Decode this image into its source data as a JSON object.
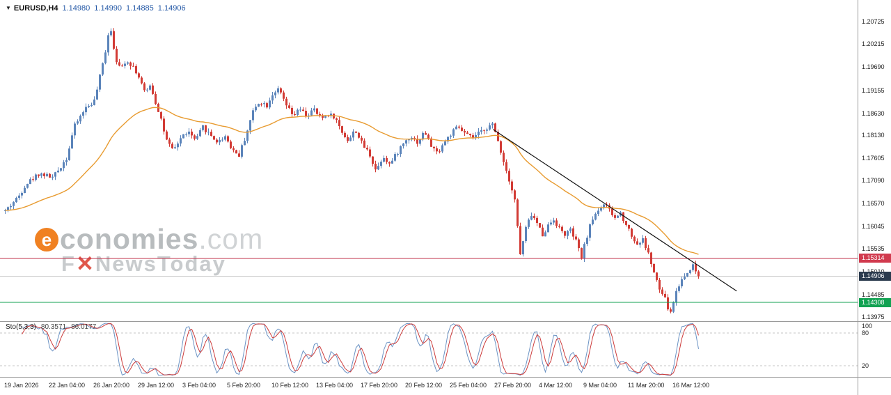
{
  "icons": {
    "symbol_marker": "▼"
  },
  "titlebar": {
    "symbol": "EURUSD,H4",
    "open": "1.14980",
    "high": "1.14990",
    "low": "1.14885",
    "close": "1.14906"
  },
  "watermark": {
    "logo_letter": "e",
    "brand": "conomies",
    "suffix": ".com",
    "tagline_part1": "F",
    "tagline_part2": "✕",
    "tagline_part3": "NewsToday"
  },
  "colors": {
    "bull": "#5b84ba",
    "bear": "#d23b35",
    "trendline": "#111111",
    "axis_border": "#9a9a9a"
  },
  "chart_data": {
    "type": "candlestick",
    "symbol": "EURUSD",
    "timeframe": "H4",
    "quote": {
      "open": 1.1498,
      "high": 1.1499,
      "low": 1.14885,
      "close": 1.14906
    },
    "price_axis_labels": [
      "1.20725",
      "1.20215",
      "1.19690",
      "1.19155",
      "1.18630",
      "1.18130",
      "1.17605",
      "1.17090",
      "1.16570",
      "1.16045",
      "1.15535",
      "1.15010",
      "1.14485",
      "1.13975"
    ],
    "time_axis_labels": [
      "19 Jan 2026",
      "22 Jan 04:00",
      "26 Jan 20:00",
      "29 Jan 12:00",
      "3 Feb 04:00",
      "5 Feb 20:00",
      "10 Feb 12:00",
      "13 Feb 04:00",
      "17 Feb 20:00",
      "20 Feb 12:00",
      "25 Feb 04:00",
      "27 Feb 20:00",
      "4 Mar 12:00",
      "9 Mar 04:00",
      "11 Mar 20:00",
      "16 Mar 12:00"
    ],
    "axis_range": {
      "top_price": 1.21218,
      "bottom_price": 1.1388
    },
    "levels": [
      {
        "price": 1.15314,
        "label": "1.15314",
        "line_color": "#c0304a",
        "badge_color": "#d13a4e"
      },
      {
        "price": 1.14308,
        "label": "1.14308",
        "line_color": "#11a252",
        "badge_color": "#11a252"
      }
    ],
    "current_price": {
      "price": 1.14906,
      "label": "1.14906",
      "line_color": "#c9c9c9",
      "badge_color": "#2b3b4e"
    },
    "trendline": {
      "from": {
        "fx": 0.575,
        "price": 1.1826
      },
      "to": {
        "fx": 0.859,
        "price": 1.1457
      }
    },
    "moving_average": {
      "period": 45,
      "color": "#e89b30"
    },
    "candle_count": 250,
    "price_path": [
      [
        0.0,
        1.164
      ],
      [
        0.019,
        1.1672
      ],
      [
        0.029,
        1.17
      ],
      [
        0.049,
        1.1726
      ],
      [
        0.069,
        1.1716
      ],
      [
        0.089,
        1.1762
      ],
      [
        0.099,
        1.183
      ],
      [
        0.114,
        1.1872
      ],
      [
        0.129,
        1.1892
      ],
      [
        0.144,
        1.2
      ],
      [
        0.151,
        1.2068
      ],
      [
        0.159,
        1.1992
      ],
      [
        0.166,
        1.1962
      ],
      [
        0.174,
        1.1985
      ],
      [
        0.184,
        1.1972
      ],
      [
        0.194,
        1.1942
      ],
      [
        0.202,
        1.1906
      ],
      [
        0.209,
        1.193
      ],
      [
        0.216,
        1.1892
      ],
      [
        0.224,
        1.1856
      ],
      [
        0.232,
        1.1802
      ],
      [
        0.242,
        1.1776
      ],
      [
        0.253,
        1.1806
      ],
      [
        0.263,
        1.1822
      ],
      [
        0.275,
        1.18
      ],
      [
        0.285,
        1.1832
      ],
      [
        0.295,
        1.1815
      ],
      [
        0.307,
        1.1796
      ],
      [
        0.317,
        1.1812
      ],
      [
        0.327,
        1.1782
      ],
      [
        0.337,
        1.1766
      ],
      [
        0.347,
        1.1812
      ],
      [
        0.357,
        1.1866
      ],
      [
        0.367,
        1.1892
      ],
      [
        0.377,
        1.188
      ],
      [
        0.387,
        1.1912
      ],
      [
        0.395,
        1.1916
      ],
      [
        0.405,
        1.1882
      ],
      [
        0.415,
        1.1856
      ],
      [
        0.425,
        1.1872
      ],
      [
        0.435,
        1.1856
      ],
      [
        0.445,
        1.1872
      ],
      [
        0.455,
        1.185
      ],
      [
        0.465,
        1.1862
      ],
      [
        0.475,
        1.1855
      ],
      [
        0.485,
        1.1822
      ],
      [
        0.495,
        1.18
      ],
      [
        0.505,
        1.1826
      ],
      [
        0.515,
        1.1792
      ],
      [
        0.525,
        1.1772
      ],
      [
        0.535,
        1.1732
      ],
      [
        0.545,
        1.1766
      ],
      [
        0.555,
        1.1746
      ],
      [
        0.565,
        1.1772
      ],
      [
        0.575,
        1.1796
      ],
      [
        0.585,
        1.1812
      ],
      [
        0.595,
        1.1796
      ],
      [
        0.605,
        1.1822
      ],
      [
        0.613,
        1.1792
      ],
      [
        0.623,
        1.1772
      ],
      [
        0.633,
        1.1796
      ],
      [
        0.643,
        1.1816
      ],
      [
        0.653,
        1.1832
      ],
      [
        0.663,
        1.1816
      ],
      [
        0.673,
        1.1806
      ],
      [
        0.683,
        1.1816
      ],
      [
        0.693,
        1.183
      ],
      [
        0.703,
        1.1836
      ],
      [
        0.711,
        1.18
      ],
      [
        0.719,
        1.1752
      ],
      [
        0.727,
        1.1712
      ],
      [
        0.735,
        1.1666
      ],
      [
        0.743,
        1.154
      ],
      [
        0.751,
        1.16
      ],
      [
        0.759,
        1.1632
      ],
      [
        0.767,
        1.1612
      ],
      [
        0.775,
        1.1586
      ],
      [
        0.783,
        1.1606
      ],
      [
        0.791,
        1.1622
      ],
      [
        0.799,
        1.16
      ],
      [
        0.807,
        1.1586
      ],
      [
        0.815,
        1.1596
      ],
      [
        0.823,
        1.1572
      ],
      [
        0.831,
        1.1532
      ],
      [
        0.839,
        1.1582
      ],
      [
        0.847,
        1.1622
      ],
      [
        0.855,
        1.1642
      ],
      [
        0.863,
        1.1656
      ],
      [
        0.871,
        1.1642
      ],
      [
        0.879,
        1.1622
      ],
      [
        0.887,
        1.1636
      ],
      [
        0.895,
        1.1612
      ],
      [
        0.903,
        1.1586
      ],
      [
        0.911,
        1.1562
      ],
      [
        0.919,
        1.1576
      ],
      [
        0.927,
        1.1546
      ],
      [
        0.935,
        1.1502
      ],
      [
        0.943,
        1.1462
      ],
      [
        0.951,
        1.1442
      ],
      [
        0.959,
        1.1402
      ],
      [
        0.967,
        1.1452
      ],
      [
        0.975,
        1.1482
      ],
      [
        0.983,
        1.1496
      ],
      [
        0.991,
        1.1518
      ],
      [
        1.0,
        1.1491
      ]
    ],
    "stochastic": {
      "label": "Sto(5,3,3)",
      "k_value": "80.3571",
      "d_value": "86.0177",
      "k_color": "#6b93c4",
      "d_color": "#cc3b3b",
      "scale_labels": [
        {
          "label": "100",
          "value": 100
        },
        {
          "label": "80",
          "value": 80
        },
        {
          "label": "20",
          "value": 20
        }
      ],
      "guides": [
        80,
        20
      ]
    }
  }
}
